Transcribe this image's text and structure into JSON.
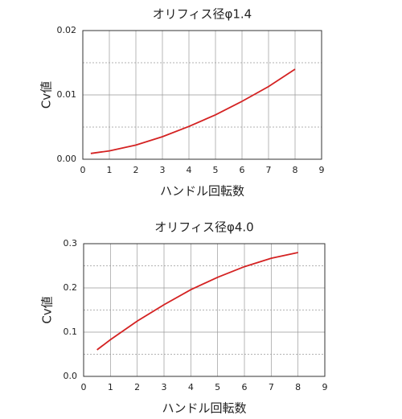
{
  "chart_data": [
    {
      "type": "line",
      "title": "オリフィス径φ1.4",
      "x_label": "ハンドル回転数",
      "y_label": "Cv値",
      "x": [
        0.3,
        1,
        2,
        3,
        4,
        5,
        6,
        7,
        8
      ],
      "values": [
        0.0009,
        0.0013,
        0.0022,
        0.0035,
        0.0051,
        0.0069,
        0.009,
        0.0113,
        0.014
      ],
      "color": "#d42222",
      "xlim": [
        0,
        9
      ],
      "xticks": [
        0,
        1,
        2,
        3,
        4,
        5,
        6,
        7,
        8,
        9
      ],
      "ylim": [
        0,
        0.02
      ],
      "yticks": [
        {
          "value": 0,
          "label": "0.00"
        },
        0.01,
        0.02
      ],
      "y_minor_grid": [
        0.005,
        0.015
      ],
      "grid": true
    },
    {
      "type": "line",
      "title": "オリフィス径φ4.0",
      "x_label": "ハンドル回転数",
      "y_label": "Cv値",
      "x": [
        0.5,
        1,
        2,
        3,
        4,
        5,
        6,
        7,
        8
      ],
      "values": [
        0.06,
        0.083,
        0.125,
        0.162,
        0.196,
        0.224,
        0.248,
        0.267,
        0.28
      ],
      "color": "#d42222",
      "xlim": [
        0,
        9
      ],
      "xticks": [
        0,
        1,
        2,
        3,
        4,
        5,
        6,
        7,
        8,
        9
      ],
      "ylim": [
        0,
        0.3
      ],
      "yticks": [
        {
          "value": 0,
          "label": "0.0"
        },
        0.1,
        0.2,
        0.3
      ],
      "y_minor_grid": [
        0.05,
        0.15,
        0.25
      ],
      "grid": true
    }
  ]
}
